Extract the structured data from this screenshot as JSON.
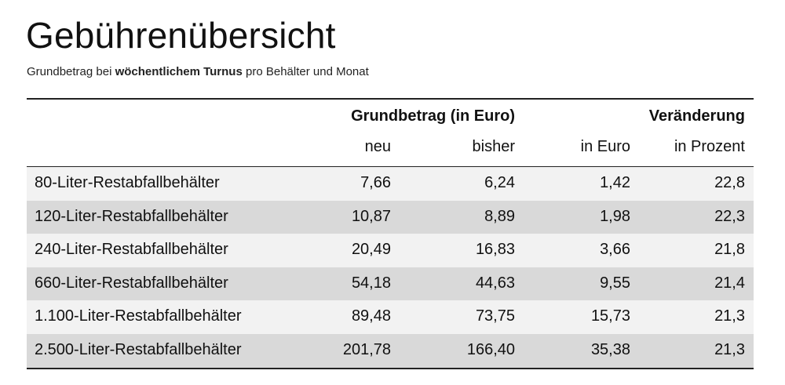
{
  "title": "Gebührenübersicht",
  "subtitle": {
    "prefix": "Grundbetrag bei ",
    "bold": "wöchentlichem Turnus",
    "suffix": " pro Behälter und Monat"
  },
  "table": {
    "group_headers": {
      "grundbetrag": "Grundbetrag (in Euro)",
      "veraenderung": "Veränderung"
    },
    "columns": [
      "neu",
      "bisher",
      "in Euro",
      "in Prozent"
    ],
    "rows": [
      {
        "label": "80-Liter-Restabfallbehälter",
        "neu": "7,66",
        "bisher": "6,24",
        "euro": "1,42",
        "prozent": "22,8"
      },
      {
        "label": "120-Liter-Restabfallbehälter",
        "neu": "10,87",
        "bisher": "8,89",
        "euro": "1,98",
        "prozent": "22,3"
      },
      {
        "label": "240-Liter-Restabfallbehälter",
        "neu": "20,49",
        "bisher": "16,83",
        "euro": "3,66",
        "prozent": "21,8"
      },
      {
        "label": "660-Liter-Restabfallbehälter",
        "neu": "54,18",
        "bisher": "44,63",
        "euro": "9,55",
        "prozent": "21,4"
      },
      {
        "label": "1.100-Liter-Restabfallbehälter",
        "neu": "89,48",
        "bisher": "73,75",
        "euro": "15,73",
        "prozent": "21,3"
      },
      {
        "label": "2.500-Liter-Restabfallbehälter",
        "neu": "201,78",
        "bisher": "166,40",
        "euro": "35,38",
        "prozent": "21,3"
      }
    ]
  }
}
